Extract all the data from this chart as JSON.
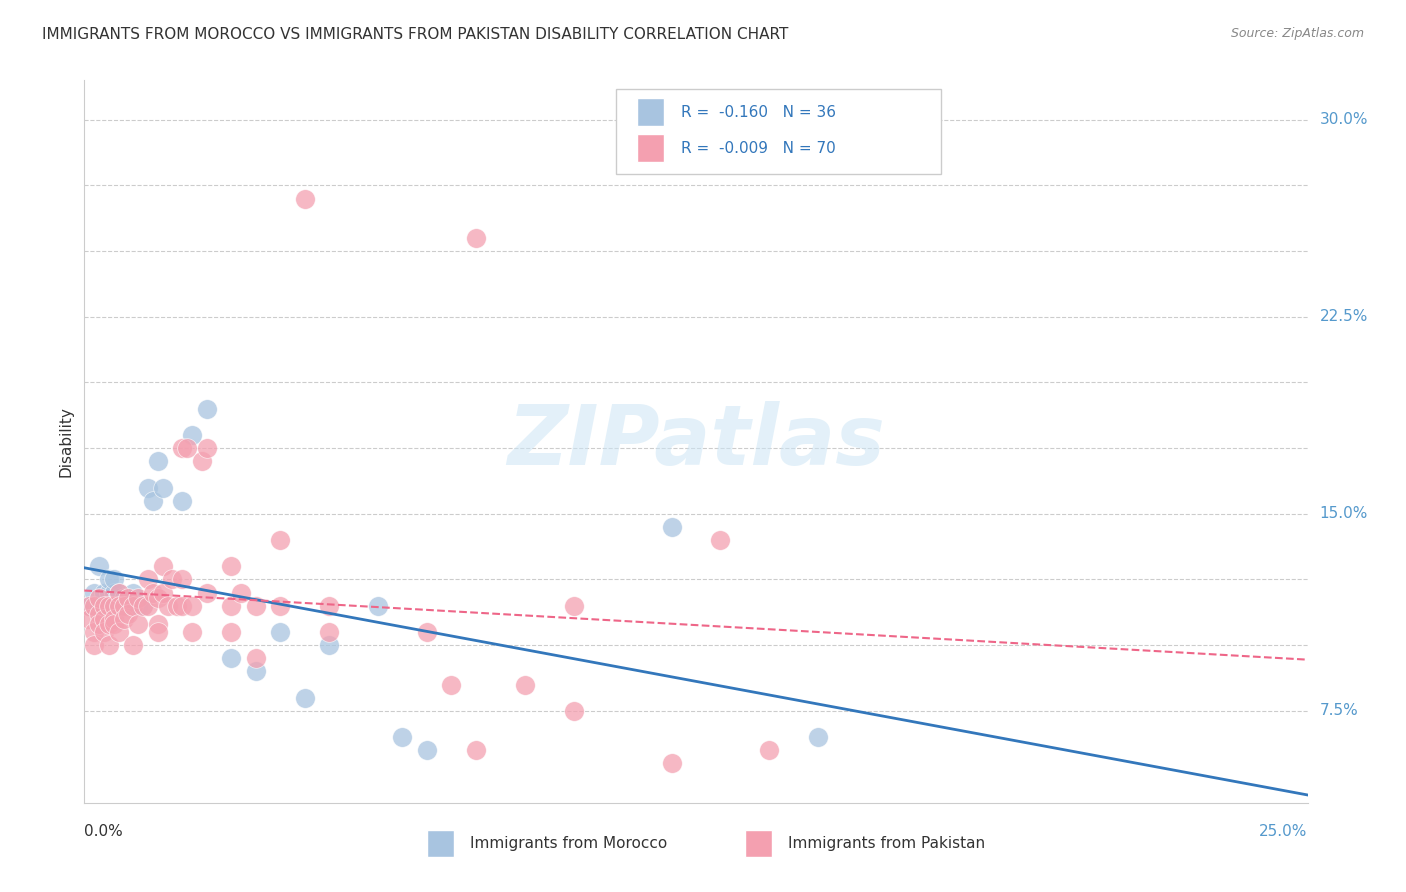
{
  "title": "IMMIGRANTS FROM MOROCCO VS IMMIGRANTS FROM PAKISTAN DISABILITY CORRELATION CHART",
  "source": "Source: ZipAtlas.com",
  "ylabel": "Disability",
  "ytick_positions": [
    0.075,
    0.1,
    0.125,
    0.15,
    0.175,
    0.2,
    0.225,
    0.25,
    0.275,
    0.3
  ],
  "ytick_labels": [
    "7.5%",
    "",
    "",
    "15.0%",
    "",
    "",
    "22.5%",
    "",
    "",
    "30.0%"
  ],
  "xlim": [
    0.0,
    0.25
  ],
  "ylim": [
    0.04,
    0.315
  ],
  "morocco_color": "#a8c4e0",
  "pakistan_color": "#f4a0b0",
  "morocco_line_color": "#3377bb",
  "pakistan_line_color": "#ee6688",
  "legend_label_morocco": "Immigrants from Morocco",
  "legend_label_pakistan": "Immigrants from Pakistan",
  "morocco_scatter": [
    [
      0.001,
      0.115
    ],
    [
      0.002,
      0.12
    ],
    [
      0.003,
      0.115
    ],
    [
      0.003,
      0.13
    ],
    [
      0.004,
      0.115
    ],
    [
      0.004,
      0.12
    ],
    [
      0.005,
      0.12
    ],
    [
      0.005,
      0.125
    ],
    [
      0.006,
      0.12
    ],
    [
      0.006,
      0.125
    ],
    [
      0.007,
      0.12
    ],
    [
      0.007,
      0.115
    ],
    [
      0.008,
      0.118
    ],
    [
      0.009,
      0.118
    ],
    [
      0.01,
      0.12
    ],
    [
      0.01,
      0.115
    ],
    [
      0.011,
      0.115
    ],
    [
      0.012,
      0.115
    ],
    [
      0.013,
      0.16
    ],
    [
      0.014,
      0.155
    ],
    [
      0.015,
      0.17
    ],
    [
      0.016,
      0.16
    ],
    [
      0.02,
      0.155
    ],
    [
      0.022,
      0.18
    ],
    [
      0.025,
      0.19
    ],
    [
      0.03,
      0.095
    ],
    [
      0.035,
      0.09
    ],
    [
      0.04,
      0.105
    ],
    [
      0.045,
      0.08
    ],
    [
      0.05,
      0.1
    ],
    [
      0.06,
      0.115
    ],
    [
      0.065,
      0.065
    ],
    [
      0.07,
      0.06
    ],
    [
      0.12,
      0.145
    ],
    [
      0.15,
      0.065
    ],
    [
      0.005,
      0.115
    ]
  ],
  "pakistan_scatter": [
    [
      0.001,
      0.115
    ],
    [
      0.001,
      0.11
    ],
    [
      0.002,
      0.105
    ],
    [
      0.002,
      0.1
    ],
    [
      0.002,
      0.115
    ],
    [
      0.003,
      0.112
    ],
    [
      0.003,
      0.108
    ],
    [
      0.003,
      0.118
    ],
    [
      0.004,
      0.115
    ],
    [
      0.004,
      0.11
    ],
    [
      0.004,
      0.105
    ],
    [
      0.005,
      0.115
    ],
    [
      0.005,
      0.108
    ],
    [
      0.005,
      0.1
    ],
    [
      0.006,
      0.115
    ],
    [
      0.006,
      0.11
    ],
    [
      0.006,
      0.108
    ],
    [
      0.007,
      0.12
    ],
    [
      0.007,
      0.115
    ],
    [
      0.007,
      0.105
    ],
    [
      0.008,
      0.115
    ],
    [
      0.008,
      0.11
    ],
    [
      0.009,
      0.118
    ],
    [
      0.009,
      0.112
    ],
    [
      0.01,
      0.115
    ],
    [
      0.01,
      0.1
    ],
    [
      0.011,
      0.118
    ],
    [
      0.011,
      0.108
    ],
    [
      0.012,
      0.115
    ],
    [
      0.013,
      0.125
    ],
    [
      0.013,
      0.115
    ],
    [
      0.014,
      0.12
    ],
    [
      0.015,
      0.118
    ],
    [
      0.015,
      0.108
    ],
    [
      0.015,
      0.105
    ],
    [
      0.016,
      0.13
    ],
    [
      0.016,
      0.12
    ],
    [
      0.017,
      0.115
    ],
    [
      0.018,
      0.125
    ],
    [
      0.019,
      0.115
    ],
    [
      0.02,
      0.175
    ],
    [
      0.02,
      0.125
    ],
    [
      0.02,
      0.115
    ],
    [
      0.021,
      0.175
    ],
    [
      0.022,
      0.105
    ],
    [
      0.022,
      0.115
    ],
    [
      0.024,
      0.17
    ],
    [
      0.025,
      0.175
    ],
    [
      0.025,
      0.12
    ],
    [
      0.03,
      0.105
    ],
    [
      0.03,
      0.115
    ],
    [
      0.03,
      0.13
    ],
    [
      0.032,
      0.12
    ],
    [
      0.035,
      0.115
    ],
    [
      0.035,
      0.095
    ],
    [
      0.04,
      0.115
    ],
    [
      0.04,
      0.14
    ],
    [
      0.045,
      0.27
    ],
    [
      0.05,
      0.115
    ],
    [
      0.05,
      0.105
    ],
    [
      0.07,
      0.105
    ],
    [
      0.075,
      0.085
    ],
    [
      0.08,
      0.06
    ],
    [
      0.08,
      0.255
    ],
    [
      0.09,
      0.085
    ],
    [
      0.1,
      0.075
    ],
    [
      0.1,
      0.115
    ],
    [
      0.12,
      0.055
    ],
    [
      0.13,
      0.14
    ],
    [
      0.14,
      0.06
    ]
  ],
  "watermark": "ZIPatlas",
  "grid_color": "#cccccc",
  "background_color": "#ffffff",
  "right_tick_color": "#5599cc",
  "text_color": "#333333",
  "source_color": "#888888"
}
